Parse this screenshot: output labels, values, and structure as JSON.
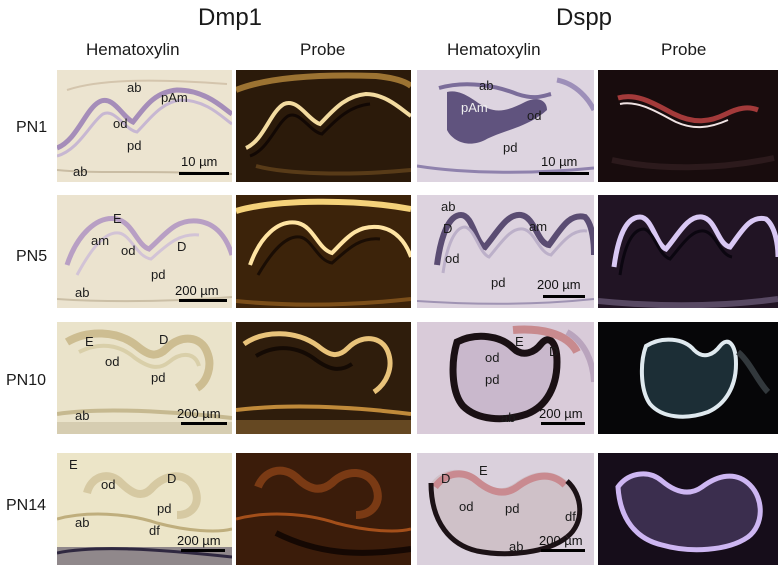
{
  "headers": {
    "genes": [
      "Dmp1",
      "Dspp"
    ],
    "columns": [
      "Hematoxylin",
      "Probe",
      "Hematoxylin",
      "Probe"
    ],
    "rows": [
      "PN1",
      "PN5",
      "PN10",
      "PN14"
    ]
  },
  "labels": {
    "r0c0": [
      "ab",
      "pAm",
      "od",
      "pd",
      "ab"
    ],
    "r0c2": [
      "ab",
      "pAm",
      "od",
      "pd"
    ],
    "r1c0": [
      "E",
      "am",
      "od",
      "D",
      "pd",
      "ab"
    ],
    "r1c2": [
      "ab",
      "D",
      "am",
      "od",
      "pd"
    ],
    "r2c0": [
      "E",
      "D",
      "od",
      "pd",
      "ab"
    ],
    "r2c2": [
      "od",
      "E",
      "D",
      "pd",
      "ab"
    ],
    "r3c0": [
      "E",
      "od",
      "D",
      "pd",
      "ab",
      "df"
    ],
    "r3c2": [
      "D",
      "E",
      "od",
      "pd",
      "df",
      "ab"
    ]
  },
  "scalebars": {
    "r0c0": "10 µm",
    "r0c2": "10 µm",
    "r1c0": "200 µm",
    "r1c2": "200 µm",
    "r2c0": "200 µm",
    "r2c2": "200 µm",
    "r3c0": "200 µm",
    "r3c2": "200 µm"
  },
  "colors": {
    "hematoxylin_bg": "#e6dcc6",
    "hematoxylin_bg_dspp": "#d9cfd9",
    "probe_dmp1_bg": "#2a1808",
    "probe_dmp1_signal": "#f6d58a",
    "probe_dspp_bg": "#120a12",
    "probe_dspp_signal": "#d7c6ef"
  }
}
